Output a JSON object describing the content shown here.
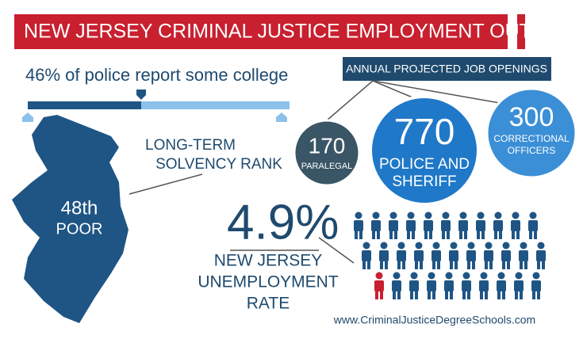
{
  "header": {
    "title": "NEW JERSEY CRIMINAL JUSTICE EMPLOYMENT OUTLOOK"
  },
  "college": {
    "label": "46% of police report some college"
  },
  "map": {
    "rank": "48th",
    "rating": "POOR",
    "caption": [
      "LONG-TERM",
      "SOLVENCY RANK"
    ]
  },
  "openings": {
    "title": "ANNUAL PROJECTED JOB OPENINGS",
    "items": [
      {
        "value": "170",
        "label": [
          "PARALEGAL"
        ]
      },
      {
        "value": "770",
        "label": [
          "POLICE AND",
          "SHERIFF"
        ]
      },
      {
        "value": "300",
        "label": [
          "CORRECTIONAL",
          "OFFICERS"
        ]
      }
    ]
  },
  "unemployment": {
    "value": "4.9%",
    "label": [
      "NEW JERSEY",
      "UNEMPLOYMENT",
      "RATE"
    ]
  },
  "footer": {
    "url": "www.CriminalJusticeDegreeSchools.com"
  }
}
